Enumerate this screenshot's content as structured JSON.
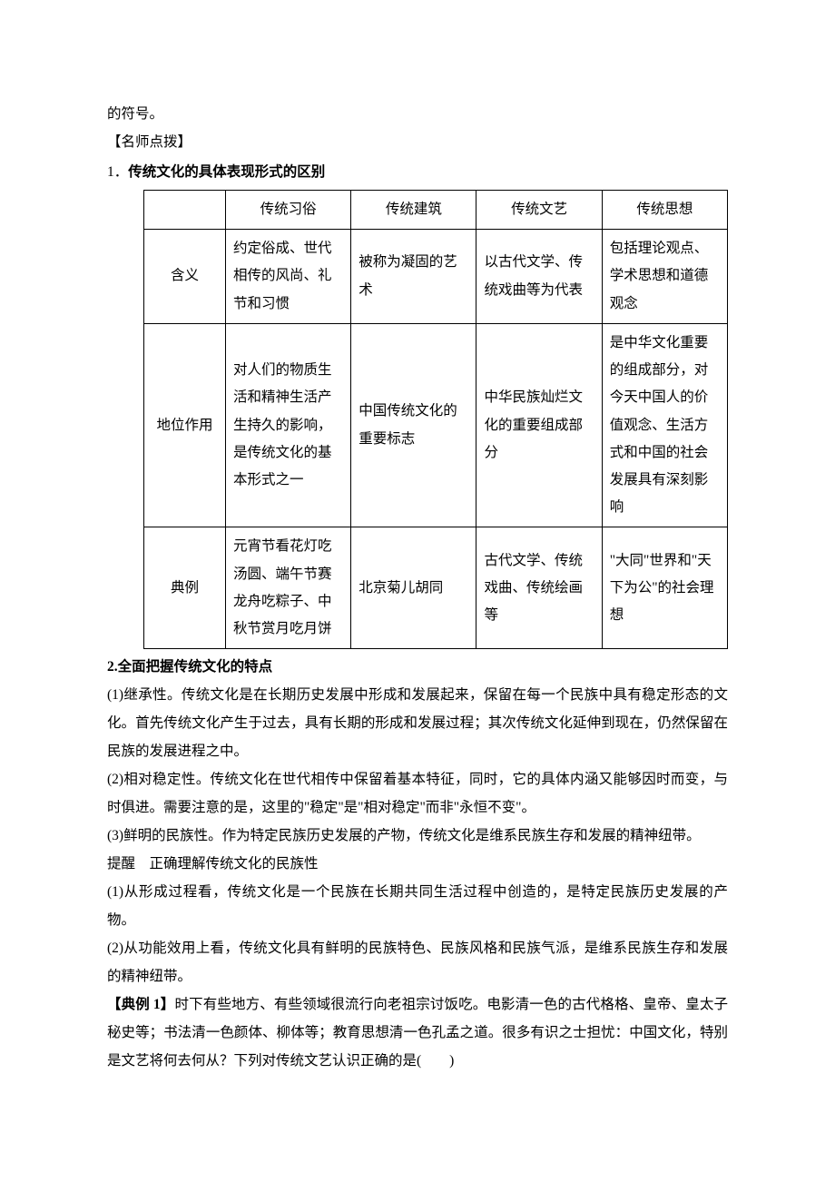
{
  "line_top": "的符号。",
  "annotation_label": "【名师点拨】",
  "section1": {
    "num": "1．",
    "title": "传统文化的具体表现形式的区别"
  },
  "table": {
    "headers": [
      "",
      "传统习俗",
      "传统建筑",
      "传统文艺",
      "传统思想"
    ],
    "rows": [
      {
        "label": "含义",
        "cells": [
          "约定俗成、世代相传的风尚、礼节和习惯",
          "被称为凝固的艺术",
          "以古代文学、传统戏曲等为代表",
          "包括理论观点、学术思想和道德观念"
        ]
      },
      {
        "label": "地位作用",
        "cells": [
          "对人们的物质生活和精神生活产生持久的影响，是传统文化的基本形式之一",
          "中国传统文化的重要标志",
          "中华民族灿烂文化的重要组成部分",
          "是中华文化重要的组成部分，对今天中国人的价值观念、生活方式和中国的社会发展具有深刻影响"
        ]
      },
      {
        "label": "典例",
        "cells": [
          "元宵节看花灯吃汤圆、端午节赛龙舟吃粽子、中秋节赏月吃月饼",
          "北京菊儿胡同",
          "古代文学、传统戏曲、传统绘画等",
          "\"大同\"世界和\"天下为公\"的社会理想"
        ]
      }
    ]
  },
  "section2": {
    "title": "2.全面把握传统文化的特点",
    "p1": "(1)继承性。传统文化是在长期历史发展中形成和发展起来，保留在每一个民族中具有稳定形态的文化。首先传统文化产生于过去，具有长期的形成和发展过程；其次传统文化延伸到现在，仍然保留在民族的发展进程之中。",
    "p2": "(2)相对稳定性。传统文化在世代相传中保留着基本特征，同时，它的具体内涵又能够因时而变，与时俱进。需要注意的是，这里的\"稳定\"是\"相对稳定\"而非\"永恒不变\"。",
    "p3": "(3)鲜明的民族性。作为特定民族历史发展的产物，传统文化是维系民族生存和发展的精神纽带。"
  },
  "reminder": {
    "label": "提醒",
    "text": "　正确理解传统文化的民族性",
    "p1": "(1)从形成过程看，传统文化是一个民族在长期共同生活过程中创造的，是特定民族历史发展的产物。",
    "p2": "(2)从功能效用上看，传统文化具有鲜明的民族特色、民族风格和民族气派，是维系民族生存和发展的精神纽带。"
  },
  "example": {
    "label": "【典例 1】",
    "text": "时下有些地方、有些领域很流行向老祖宗讨饭吃。电影清一色的古代格格、皇帝、皇太子秘史等；书法清一色颜体、柳体等；教育思想清一色孔孟之道。很多有识之士担忧：中国文化，特别是文艺将何去何从？下列对传统文艺认识正确的是(　　)"
  },
  "colors": {
    "background": "#ffffff",
    "text": "#000000",
    "border": "#000000"
  },
  "typography": {
    "body_fontsize": 15.5,
    "line_height": 2.0,
    "font_family": "SimSun"
  }
}
